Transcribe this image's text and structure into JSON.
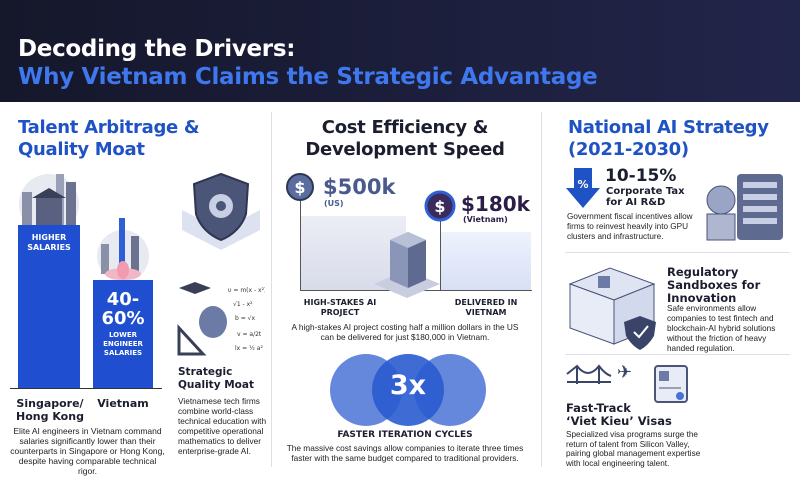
{
  "header": {
    "title": "Decoding the Drivers:",
    "subtitle": "Why Vietnam Claims the Strategic Advantage"
  },
  "colors": {
    "navy": "#1b1d36",
    "accent": "#1f52c4",
    "bar": "#1f4fd0",
    "light_blue": "#3f78ee"
  },
  "talent": {
    "title_1": "Talent Arbitrage &",
    "title_2": "Quality Moat",
    "bar_singapore_label": "HIGHER SALARIES",
    "bar_vietnam_value": "40-60%",
    "bar_vietnam_label": "LOWER ENGINEER SALARIES",
    "x_singapore": "Singapore/ Hong Kong",
    "x_vietnam": "Vietnam",
    "description": "Elite AI engineers in Vietnam command salaries significantly lower than their counterparts in Singapore or Hong Kong, despite having comparable technical rigor.",
    "moat_title": "Strategic Quality Moat",
    "moat_text": "Vietnamese tech firms combine world-class technical education with competitive operational mathematics to deliver enterprise-grade AI.",
    "formulas": [
      "υ = m(x - x²)",
      "√1 - x²",
      "b = √x",
      "v = a/2t",
      "lx = ½ a²"
    ]
  },
  "cost": {
    "title_1": "Cost Efficiency &",
    "title_2": "Development Speed",
    "us_value": "$500k",
    "us_label": "(US)",
    "vn_value": "$180k",
    "vn_label": "(Vietnam)",
    "left_caption": "HIGH-STAKES AI PROJECT",
    "right_caption": "DELIVERED IN VIETNAM",
    "description": "A high-stakes AI project costing half a million dollars in the US can be delivered for just $180,000 in Vietnam.",
    "multiplier": "3x",
    "iter_title": "FASTER ITERATION CYCLES",
    "iter_text": "The massive cost savings allow companies to iterate three times faster with the same budget compared to traditional providers."
  },
  "strategy": {
    "title_1": "National AI Strategy",
    "title_2": "(2021-2030)",
    "tax_value": "10-15%",
    "tax_label_1": "Corporate Tax",
    "tax_label_2": "for AI R&D",
    "tax_text": "Government fiscal incentives allow firms to reinvest heavily into GPU clusters and infrastructure.",
    "sandbox_title": "Regulatory Sandboxes for Innovation",
    "sandbox_text": "Safe environments allow companies to test fintech and blockchain-AI hybrid solutions without the friction of heavy handed regulation.",
    "visa_title_1": "Fast-Track",
    "visa_title_2": "‘Viet Kieu’ Visas",
    "visa_text": "Specialized visa programs surge the return of talent from Silicon Valley, pairing global management expertise with local engineering talent."
  }
}
